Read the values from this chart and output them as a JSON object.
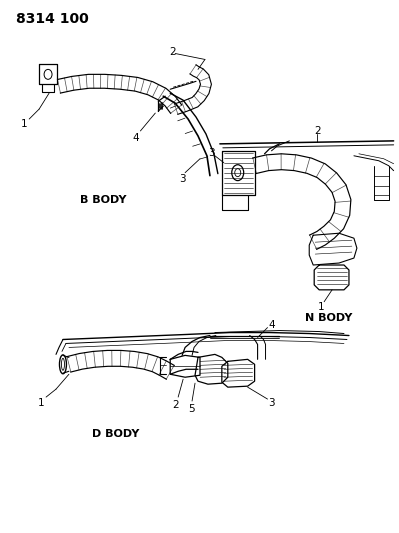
{
  "title": "8314 100",
  "bg": "#ffffff",
  "fg": "#000000",
  "b_body_label": "B BODY",
  "n_body_label": "N BODY",
  "d_body_label": "D BODY",
  "title_fs": 10,
  "label_fs": 8,
  "num_fs": 7.5
}
